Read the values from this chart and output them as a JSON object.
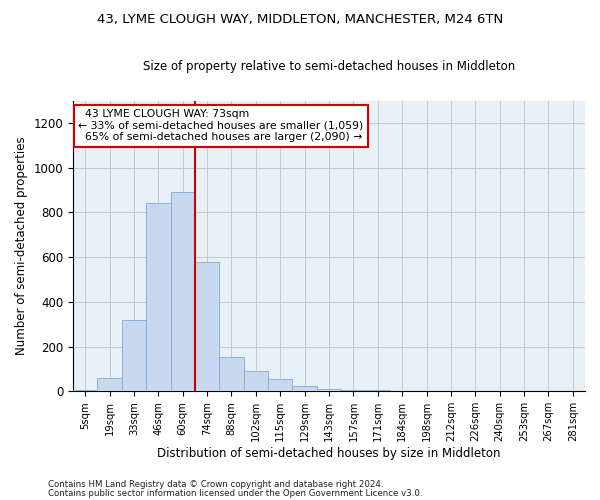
{
  "title1": "43, LYME CLOUGH WAY, MIDDLETON, MANCHESTER, M24 6TN",
  "title2": "Size of property relative to semi-detached houses in Middleton",
  "xlabel": "Distribution of semi-detached houses by size in Middleton",
  "ylabel": "Number of semi-detached properties",
  "footer1": "Contains HM Land Registry data © Crown copyright and database right 2024.",
  "footer2": "Contains public sector information licensed under the Open Government Licence v3.0.",
  "property_label": "43 LYME CLOUGH WAY: 73sqm",
  "pct_smaller": 33,
  "n_smaller": 1059,
  "pct_larger": 65,
  "n_larger": 2090,
  "bar_color": "#c8d8ee",
  "bar_edge_color": "#7aaed6",
  "vline_color": "#cc0000",
  "annotation_edge_color": "#cc0000",
  "grid_color": "#c8c8c8",
  "bg_axes": "#e8f0f8",
  "categories": [
    "5sqm",
    "19sqm",
    "33sqm",
    "46sqm",
    "60sqm",
    "74sqm",
    "88sqm",
    "102sqm",
    "115sqm",
    "129sqm",
    "143sqm",
    "157sqm",
    "171sqm",
    "184sqm",
    "198sqm",
    "212sqm",
    "226sqm",
    "240sqm",
    "253sqm",
    "267sqm",
    "281sqm"
  ],
  "values": [
    5,
    60,
    320,
    840,
    890,
    580,
    155,
    90,
    55,
    25,
    10,
    5,
    5,
    3,
    2,
    0,
    0,
    1,
    0,
    0,
    0
  ],
  "ylim": [
    0,
    1300
  ],
  "yticks": [
    0,
    200,
    400,
    600,
    800,
    1000,
    1200
  ],
  "vline_idx": 4,
  "figsize": [
    6.0,
    5.0
  ],
  "dpi": 100,
  "bg_color": "#ffffff"
}
